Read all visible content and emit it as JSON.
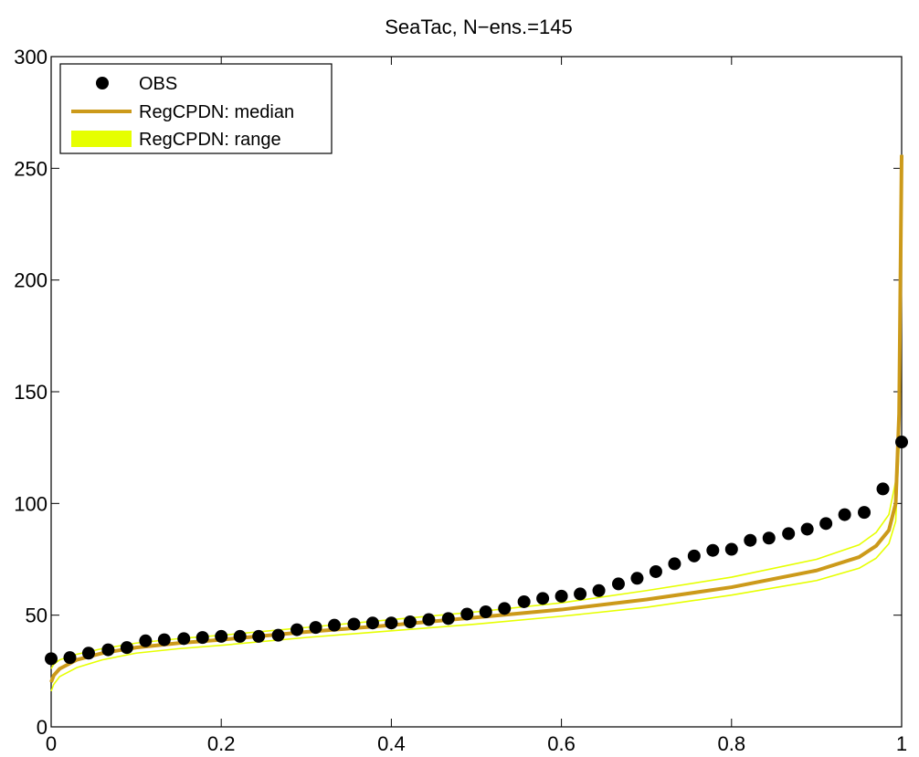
{
  "chart_data": {
    "type": "line",
    "title": "SeaTac, N−ens.=145",
    "xlabel": "",
    "ylabel": "",
    "xlim": [
      0,
      1
    ],
    "ylim": [
      0,
      300
    ],
    "xticks": [
      0,
      0.2,
      0.4,
      0.6,
      0.8,
      1
    ],
    "xtick_labels": [
      "0",
      "0.2",
      "0.4",
      "0.6",
      "0.8",
      "1"
    ],
    "yticks": [
      0,
      50,
      100,
      150,
      200,
      250,
      300
    ],
    "ytick_labels": [
      "0",
      "50",
      "100",
      "150",
      "200",
      "250",
      "300"
    ],
    "grid": false,
    "legend": {
      "location": "top-left",
      "entries": [
        {
          "label": "OBS",
          "style": "marker",
          "color": "#000000"
        },
        {
          "label": "RegCPDN: median",
          "style": "line",
          "color": "#cc9a1a"
        },
        {
          "label": "RegCPDN: range",
          "style": "band",
          "color": "#e6ff00"
        }
      ]
    },
    "series": [
      {
        "name": "OBS",
        "kind": "scatter",
        "color": "#000000",
        "x": [
          0.0,
          0.022,
          0.044,
          0.067,
          0.089,
          0.111,
          0.133,
          0.156,
          0.178,
          0.2,
          0.222,
          0.244,
          0.267,
          0.289,
          0.311,
          0.333,
          0.356,
          0.378,
          0.4,
          0.422,
          0.444,
          0.467,
          0.489,
          0.511,
          0.533,
          0.556,
          0.578,
          0.6,
          0.622,
          0.644,
          0.667,
          0.689,
          0.711,
          0.733,
          0.756,
          0.778,
          0.8,
          0.822,
          0.844,
          0.867,
          0.889,
          0.911,
          0.933,
          0.956,
          0.978,
          1.0
        ],
        "y": [
          30.5,
          31,
          33,
          34.5,
          35.5,
          38.5,
          39,
          39.5,
          40,
          40.5,
          40.5,
          40.5,
          41,
          43.5,
          44.5,
          45.5,
          46,
          46.5,
          46.5,
          47,
          48,
          48.5,
          50.5,
          51.5,
          53,
          56,
          57.5,
          58.5,
          59.5,
          61,
          64,
          66.5,
          69.5,
          73,
          76.5,
          79,
          79.5,
          83.5,
          84.5,
          86.5,
          88.5,
          91,
          95,
          96,
          106.5,
          127.5
        ]
      },
      {
        "name": "RegCPDN: median",
        "kind": "line",
        "color": "#cc9a1a",
        "x": [
          0.0,
          0.003,
          0.01,
          0.03,
          0.06,
          0.1,
          0.15,
          0.2,
          0.3,
          0.4,
          0.5,
          0.6,
          0.7,
          0.8,
          0.9,
          0.95,
          0.97,
          0.985,
          0.993,
          0.997,
          1.0
        ],
        "y": [
          20,
          23,
          26,
          30,
          33,
          35.5,
          37.5,
          39,
          42.5,
          45.5,
          49,
          52.5,
          57,
          62.5,
          70,
          76,
          81,
          88,
          100,
          140,
          256
        ]
      },
      {
        "name": "RegCPDN: range upper",
        "kind": "line",
        "color": "#e6ff00",
        "x": [
          0.0,
          0.003,
          0.01,
          0.03,
          0.06,
          0.1,
          0.15,
          0.2,
          0.3,
          0.4,
          0.5,
          0.6,
          0.7,
          0.8,
          0.9,
          0.95,
          0.97,
          0.985,
          0.993,
          0.997,
          1.0
        ],
        "y": [
          26,
          28,
          30,
          32.5,
          35,
          37.5,
          39.5,
          41,
          44.5,
          48,
          51.5,
          55.5,
          61,
          67,
          75,
          81.5,
          87,
          95,
          110,
          150,
          256
        ]
      },
      {
        "name": "RegCPDN: range lower",
        "kind": "line",
        "color": "#e6ff00",
        "x": [
          0.0,
          0.003,
          0.01,
          0.03,
          0.06,
          0.1,
          0.15,
          0.2,
          0.3,
          0.4,
          0.5,
          0.6,
          0.7,
          0.8,
          0.9,
          0.95,
          0.97,
          0.985,
          0.993,
          0.997,
          1.0
        ],
        "y": [
          16,
          19,
          22.5,
          26.5,
          30,
          33,
          35,
          36.5,
          40,
          43,
          46,
          49.5,
          53.5,
          59,
          65.5,
          71,
          75.5,
          82,
          92,
          125,
          256
        ]
      }
    ]
  }
}
